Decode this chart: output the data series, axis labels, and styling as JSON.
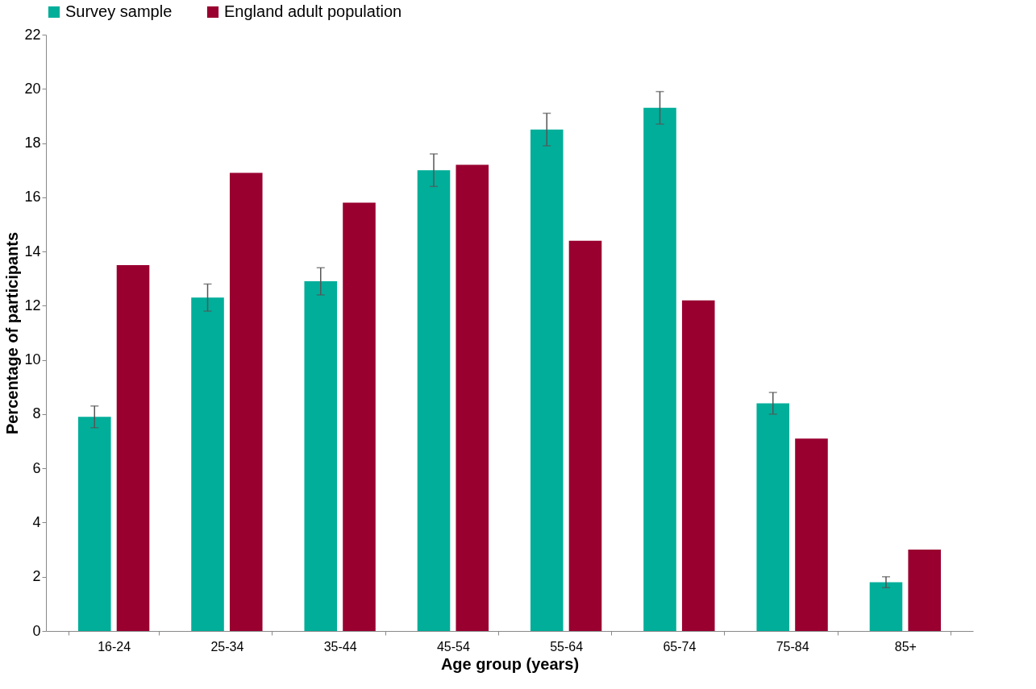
{
  "chart_data": {
    "type": "bar",
    "xlabel": "Age group (years)",
    "ylabel": "Percentage of participants",
    "categories": [
      "16-24",
      "25-34",
      "35-44",
      "45-54",
      "55-64",
      "65-74",
      "75-84",
      "85+"
    ],
    "series": [
      {
        "name": "Survey sample",
        "color": "#00ae9a",
        "values": [
          7.9,
          12.3,
          12.9,
          17.0,
          18.5,
          19.3,
          8.4,
          1.8
        ],
        "errors": [
          0.4,
          0.5,
          0.5,
          0.6,
          0.6,
          0.6,
          0.4,
          0.2
        ]
      },
      {
        "name": "England adult population",
        "color": "#990030",
        "values": [
          13.5,
          16.9,
          15.8,
          17.2,
          14.4,
          12.2,
          7.1,
          3.0
        ]
      }
    ],
    "ylim": [
      0,
      22
    ],
    "yticks": [
      0,
      2,
      4,
      6,
      8,
      10,
      12,
      14,
      16,
      18,
      20,
      22
    ],
    "grid": false,
    "legend": "top"
  }
}
